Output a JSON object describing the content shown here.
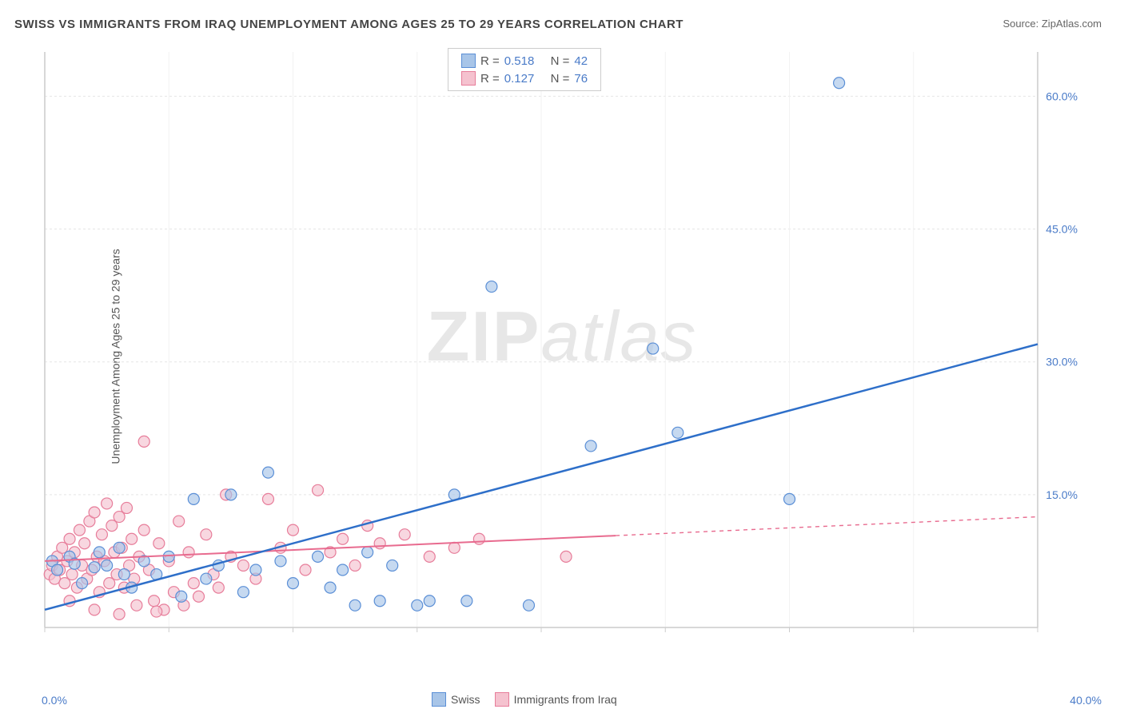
{
  "title": "SWISS VS IMMIGRANTS FROM IRAQ UNEMPLOYMENT AMONG AGES 25 TO 29 YEARS CORRELATION CHART",
  "source": "Source: ZipAtlas.com",
  "ylabel": "Unemployment Among Ages 25 to 29 years",
  "watermark_a": "ZIP",
  "watermark_b": "atlas",
  "chart": {
    "type": "scatter",
    "xlim": [
      0,
      40
    ],
    "ylim": [
      0,
      65
    ],
    "xtick_labels": [
      "0.0%",
      "40.0%"
    ],
    "ytick_labels": [
      "15.0%",
      "30.0%",
      "45.0%",
      "60.0%"
    ],
    "ytick_values": [
      15,
      30,
      45,
      60
    ],
    "grid_color": "#e5e5e5",
    "axis_color": "#cccccc",
    "background_color": "#ffffff",
    "label_color": "#4a7bc8"
  },
  "series": {
    "swiss": {
      "label": "Swiss",
      "fill": "#a8c5e8",
      "stroke": "#5b8fd6",
      "line_color": "#2e6fc9",
      "line_width": 2.5,
      "R": "0.518",
      "N": "42",
      "trend": {
        "x1": 0,
        "y1": 2,
        "x2": 40,
        "y2": 32,
        "solid_until_x": 40
      },
      "points": [
        [
          0.3,
          7.5
        ],
        [
          0.5,
          6.5
        ],
        [
          1.0,
          8.0
        ],
        [
          1.5,
          5.0
        ],
        [
          2.0,
          6.8
        ],
        [
          2.2,
          8.5
        ],
        [
          2.5,
          7.0
        ],
        [
          3.0,
          9.0
        ],
        [
          3.5,
          4.5
        ],
        [
          4.0,
          7.5
        ],
        [
          4.5,
          6.0
        ],
        [
          5.0,
          8.0
        ],
        [
          5.5,
          3.5
        ],
        [
          6.0,
          14.5
        ],
        [
          6.5,
          5.5
        ],
        [
          7.0,
          7.0
        ],
        [
          7.5,
          15.0
        ],
        [
          8.0,
          4.0
        ],
        [
          8.5,
          6.5
        ],
        [
          9.0,
          17.5
        ],
        [
          9.5,
          7.5
        ],
        [
          10.0,
          5.0
        ],
        [
          11.0,
          8.0
        ],
        [
          11.5,
          4.5
        ],
        [
          12.0,
          6.5
        ],
        [
          12.5,
          2.5
        ],
        [
          13.0,
          8.5
        ],
        [
          13.5,
          3.0
        ],
        [
          14.0,
          7.0
        ],
        [
          15.0,
          2.5
        ],
        [
          15.5,
          3.0
        ],
        [
          16.5,
          15.0
        ],
        [
          17.0,
          3.0
        ],
        [
          18.0,
          38.5
        ],
        [
          19.5,
          2.5
        ],
        [
          22.0,
          20.5
        ],
        [
          24.5,
          31.5
        ],
        [
          25.5,
          22.0
        ],
        [
          30.0,
          14.5
        ],
        [
          32.0,
          61.5
        ],
        [
          1.2,
          7.2
        ],
        [
          3.2,
          6.0
        ]
      ]
    },
    "iraq": {
      "label": "Immigrants from Iraq",
      "fill": "#f5c2cf",
      "stroke": "#e77d9a",
      "line_color": "#e86b8f",
      "line_width": 2,
      "R": "0.127",
      "N": "76",
      "trend": {
        "x1": 0,
        "y1": 7.5,
        "x2": 40,
        "y2": 12.5,
        "solid_until_x": 23
      },
      "points": [
        [
          0.2,
          6.0
        ],
        [
          0.3,
          7.0
        ],
        [
          0.4,
          5.5
        ],
        [
          0.5,
          8.0
        ],
        [
          0.6,
          6.5
        ],
        [
          0.7,
          9.0
        ],
        [
          0.8,
          5.0
        ],
        [
          0.9,
          7.5
        ],
        [
          1.0,
          10.0
        ],
        [
          1.1,
          6.0
        ],
        [
          1.2,
          8.5
        ],
        [
          1.3,
          4.5
        ],
        [
          1.4,
          11.0
        ],
        [
          1.5,
          7.0
        ],
        [
          1.6,
          9.5
        ],
        [
          1.7,
          5.5
        ],
        [
          1.8,
          12.0
        ],
        [
          1.9,
          6.5
        ],
        [
          2.0,
          13.0
        ],
        [
          2.1,
          8.0
        ],
        [
          2.2,
          4.0
        ],
        [
          2.3,
          10.5
        ],
        [
          2.4,
          7.5
        ],
        [
          2.5,
          14.0
        ],
        [
          2.6,
          5.0
        ],
        [
          2.7,
          11.5
        ],
        [
          2.8,
          8.5
        ],
        [
          2.9,
          6.0
        ],
        [
          3.0,
          12.5
        ],
        [
          3.1,
          9.0
        ],
        [
          3.2,
          4.5
        ],
        [
          3.3,
          13.5
        ],
        [
          3.4,
          7.0
        ],
        [
          3.5,
          10.0
        ],
        [
          3.6,
          5.5
        ],
        [
          3.7,
          2.5
        ],
        [
          3.8,
          8.0
        ],
        [
          4.0,
          11.0
        ],
        [
          4.2,
          6.5
        ],
        [
          4.4,
          3.0
        ],
        [
          4.6,
          9.5
        ],
        [
          4.8,
          2.0
        ],
        [
          5.0,
          7.5
        ],
        [
          5.2,
          4.0
        ],
        [
          5.4,
          12.0
        ],
        [
          5.6,
          2.5
        ],
        [
          5.8,
          8.5
        ],
        [
          6.0,
          5.0
        ],
        [
          6.2,
          3.5
        ],
        [
          6.5,
          10.5
        ],
        [
          6.8,
          6.0
        ],
        [
          7.0,
          4.5
        ],
        [
          7.3,
          15.0
        ],
        [
          7.5,
          8.0
        ],
        [
          4.0,
          21.0
        ],
        [
          8.0,
          7.0
        ],
        [
          8.5,
          5.5
        ],
        [
          9.0,
          14.5
        ],
        [
          9.5,
          9.0
        ],
        [
          10.0,
          11.0
        ],
        [
          10.5,
          6.5
        ],
        [
          11.0,
          15.5
        ],
        [
          11.5,
          8.5
        ],
        [
          12.0,
          10.0
        ],
        [
          12.5,
          7.0
        ],
        [
          13.0,
          11.5
        ],
        [
          13.5,
          9.5
        ],
        [
          14.5,
          10.5
        ],
        [
          15.5,
          8.0
        ],
        [
          16.5,
          9.0
        ],
        [
          17.5,
          10.0
        ],
        [
          21.0,
          8.0
        ],
        [
          1.0,
          3.0
        ],
        [
          2.0,
          2.0
        ],
        [
          3.0,
          1.5
        ],
        [
          4.5,
          1.8
        ]
      ]
    }
  },
  "stat_box": {
    "r_label": "R =",
    "n_label": "N ="
  },
  "legend": {
    "swiss": "Swiss",
    "iraq": "Immigrants from Iraq"
  }
}
